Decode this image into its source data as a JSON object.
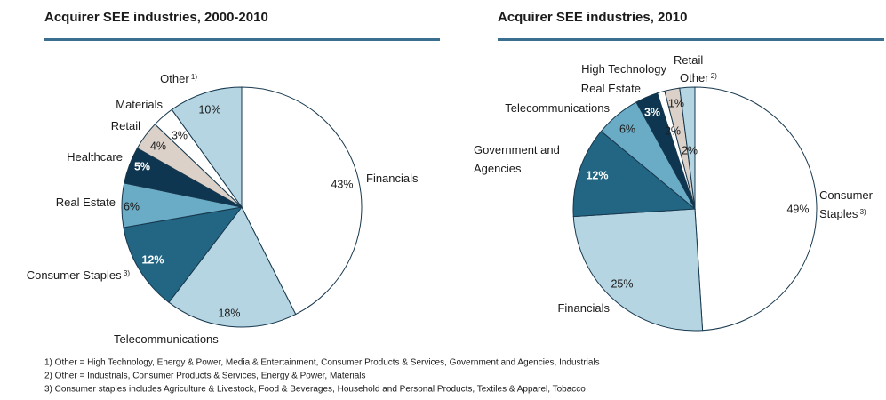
{
  "chart_data": [
    {
      "type": "pie",
      "title": "Acquirer SEE industries, 2000-2010",
      "categories": [
        "Financials",
        "Telecommunications",
        "Consumer Staples 3)",
        "Real Estate",
        "Healthcare",
        "Retail",
        "Materials",
        "Other 1)"
      ],
      "values": [
        43,
        18,
        12,
        6,
        5,
        4,
        3,
        10
      ],
      "value_labels": [
        "43%",
        "18%",
        "12%",
        "6%",
        "5%",
        "4%",
        "3%",
        "10%"
      ],
      "colors": [
        "#ffffff",
        "#b5d5e2",
        "#236683",
        "#6aabc5",
        "#0e3650",
        "#dbd1c9",
        "#ffffff",
        "#b5d5e2"
      ]
    },
    {
      "type": "pie",
      "title": "Acquirer SEE industries, 2010",
      "categories": [
        "Consumer Staples 3)",
        "Financials",
        "Government and Agencies",
        "Telecommunications",
        "Real Estate",
        "High Technology",
        "Retail",
        "Other 2)"
      ],
      "values": [
        49,
        25,
        12,
        6,
        3,
        1,
        2,
        2
      ],
      "value_labels": [
        "49%",
        "25%",
        "12%",
        "6%",
        "3%",
        "1%",
        "2%",
        "2%"
      ],
      "colors": [
        "#ffffff",
        "#b5d5e2",
        "#236683",
        "#6aabc5",
        "#0e3650",
        "#ffffff",
        "#dbd1c9",
        "#b5d5e2"
      ]
    }
  ],
  "footnotes": [
    "1) Other = High Technology,  Energy & Power, Media & Entertainment, Consumer Products & Services, Government and Agencies, Industrials",
    "2) Other = Industrials, Consumer Products & Services, Energy & Power, Materials",
    "3) Consumer staples includes Agriculture & Livestock, Food & Beverages, Household and Personal Products, Textiles & Apparel, Tobacco"
  ]
}
